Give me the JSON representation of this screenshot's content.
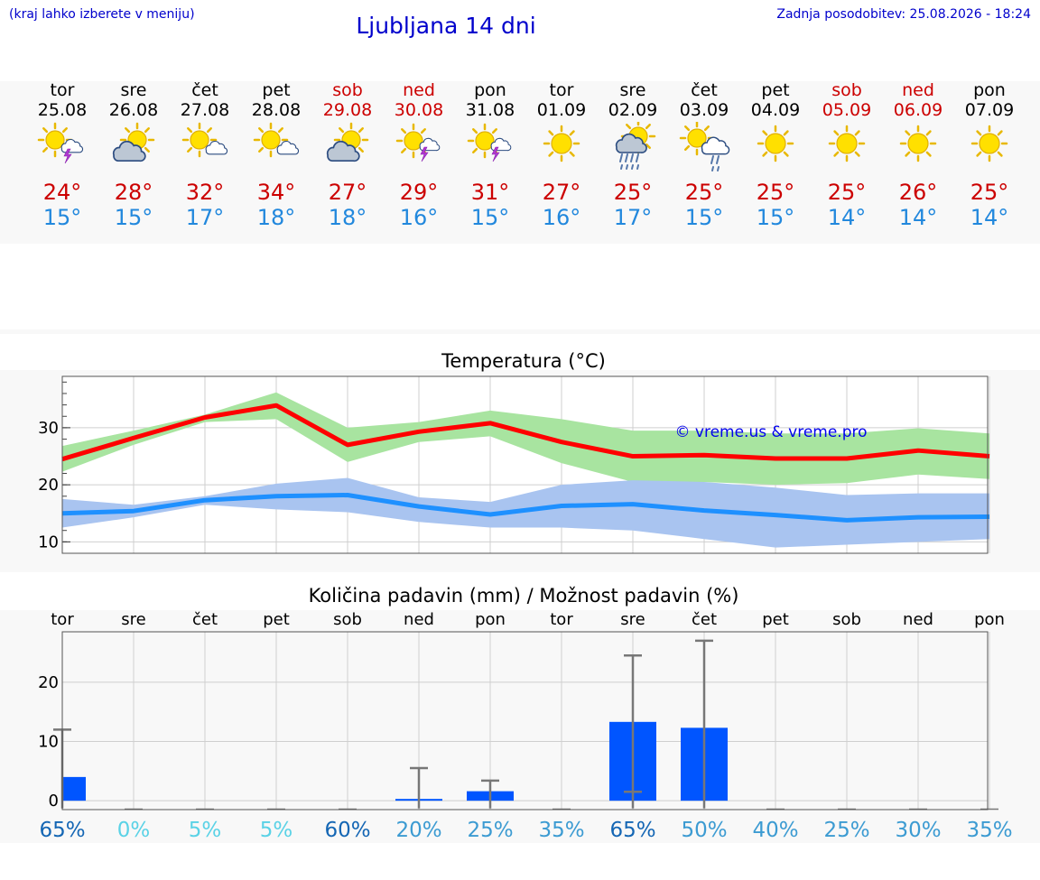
{
  "header": {
    "hint": "(kraj lahko izberete v meniju)",
    "title": "Ljubljana 14 dni",
    "updated": "Zadnja posodobitev: 25.08.2026 - 18:24"
  },
  "colors": {
    "weekend": "#cc0000",
    "tmax": "#ff0000",
    "tmin": "#1e90ff",
    "tmax_band": "#a8e4a0",
    "tmin_band": "#a9c4f0",
    "rain_bar": "#0055ff",
    "link": "#0000cc"
  },
  "days": [
    {
      "name": "tor",
      "date": "25.08",
      "weekend": false,
      "icon": "sun-cloud-thunder-icon",
      "tmax": "24°",
      "tmin": "15°"
    },
    {
      "name": "sre",
      "date": "26.08",
      "weekend": false,
      "icon": "sun-cloud-icon",
      "tmax": "28°",
      "tmin": "15°"
    },
    {
      "name": "čet",
      "date": "27.08",
      "weekend": false,
      "icon": "sun-small-cloud-icon",
      "tmax": "32°",
      "tmin": "17°"
    },
    {
      "name": "pet",
      "date": "28.08",
      "weekend": false,
      "icon": "sun-small-cloud-icon",
      "tmax": "34°",
      "tmin": "18°"
    },
    {
      "name": "sob",
      "date": "29.08",
      "weekend": true,
      "icon": "sun-cloud-icon",
      "tmax": "27°",
      "tmin": "18°"
    },
    {
      "name": "ned",
      "date": "30.08",
      "weekend": true,
      "icon": "sun-thunder-icon",
      "tmax": "29°",
      "tmin": "16°"
    },
    {
      "name": "pon",
      "date": "31.08",
      "weekend": false,
      "icon": "sun-thunder-icon",
      "tmax": "31°",
      "tmin": "15°"
    },
    {
      "name": "tor",
      "date": "01.09",
      "weekend": false,
      "icon": "sun-icon",
      "tmax": "27°",
      "tmin": "16°"
    },
    {
      "name": "sre",
      "date": "02.09",
      "weekend": false,
      "icon": "sun-rain-icon",
      "tmax": "25°",
      "tmin": "17°"
    },
    {
      "name": "čet",
      "date": "03.09",
      "weekend": false,
      "icon": "sun-cloud-shower-icon",
      "tmax": "25°",
      "tmin": "15°"
    },
    {
      "name": "pet",
      "date": "04.09",
      "weekend": false,
      "icon": "sun-icon",
      "tmax": "25°",
      "tmin": "15°"
    },
    {
      "name": "sob",
      "date": "05.09",
      "weekend": true,
      "icon": "sun-icon",
      "tmax": "25°",
      "tmin": "14°"
    },
    {
      "name": "ned",
      "date": "06.09",
      "weekend": true,
      "icon": "sun-icon",
      "tmax": "26°",
      "tmin": "14°"
    },
    {
      "name": "pon",
      "date": "07.09",
      "weekend": false,
      "icon": "sun-icon",
      "tmax": "25°",
      "tmin": "14°"
    }
  ],
  "chart_data": [
    {
      "type": "line",
      "title": "Temperatura (°C)",
      "watermark": "© vreme.us & vreme.pro",
      "x": [
        0,
        1,
        2,
        3,
        4,
        5,
        6,
        7,
        8,
        9,
        10,
        11,
        12,
        13
      ],
      "ylim": [
        8,
        39
      ],
      "yticks": [
        10,
        20,
        30
      ],
      "grid": true,
      "series": [
        {
          "values": [
            24.5,
            28.2,
            31.8,
            33.9,
            27.0,
            29.3,
            30.8,
            27.5,
            25.0,
            25.2,
            24.6,
            24.6,
            26.0,
            25.0
          ],
          "band_low": [
            22.3,
            27.0,
            31.0,
            31.5,
            24.0,
            27.5,
            28.5,
            23.8,
            20.5,
            20.5,
            20.0,
            20.3,
            21.8,
            21.0
          ],
          "band_high": [
            26.8,
            29.5,
            32.3,
            36.2,
            30.0,
            31.0,
            33.0,
            31.5,
            29.5,
            29.5,
            29.0,
            29.0,
            29.9,
            29.0
          ]
        },
        {
          "values": [
            15.0,
            15.4,
            17.3,
            18.0,
            18.2,
            16.2,
            14.8,
            16.3,
            16.6,
            15.5,
            14.7,
            13.8,
            14.3,
            14.4
          ],
          "band_low": [
            12.5,
            14.3,
            16.5,
            15.7,
            15.2,
            13.5,
            12.5,
            12.5,
            12.0,
            10.5,
            9.0,
            9.5,
            10.0,
            10.5
          ],
          "band_high": [
            17.5,
            16.5,
            18.0,
            20.2,
            21.2,
            17.8,
            17.0,
            20.0,
            20.8,
            20.5,
            19.5,
            18.2,
            18.5,
            18.5
          ]
        }
      ]
    },
    {
      "type": "bar",
      "title": "Količina padavin (mm) / Možnost padavin (%)",
      "categories": [
        "tor",
        "sre",
        "čet",
        "pet",
        "sob",
        "ned",
        "pon",
        "tor",
        "sre",
        "čet",
        "pet",
        "sob",
        "ned",
        "pon"
      ],
      "values": [
        4.0,
        0,
        0,
        0,
        0,
        0.3,
        1.6,
        0,
        13.3,
        12.3,
        0,
        0,
        0,
        0
      ],
      "error_high": [
        12.0,
        0,
        0,
        0,
        0,
        5.5,
        3.4,
        0,
        24.5,
        27.0,
        0,
        0,
        0,
        0
      ],
      "error_low": [
        0,
        0,
        0,
        0,
        0,
        0,
        0,
        0,
        1.5,
        0,
        0,
        0,
        0,
        0
      ],
      "probability": [
        "65%",
        "0%",
        "5%",
        "5%",
        "60%",
        "20%",
        "25%",
        "35%",
        "65%",
        "50%",
        "40%",
        "25%",
        "30%",
        "35%"
      ],
      "probability_colors": [
        "#1466b4",
        "#5ad2e6",
        "#5ad2e6",
        "#5ad2e6",
        "#1466b4",
        "#3c9bd2",
        "#3c9bd2",
        "#3c9bd2",
        "#1466b4",
        "#3c9bd2",
        "#3c9bd2",
        "#3c9bd2",
        "#3c9bd2",
        "#3c9bd2"
      ],
      "ylim": [
        -1.5,
        28.5
      ],
      "yticks": [
        0,
        10,
        20
      ],
      "grid": true
    }
  ]
}
